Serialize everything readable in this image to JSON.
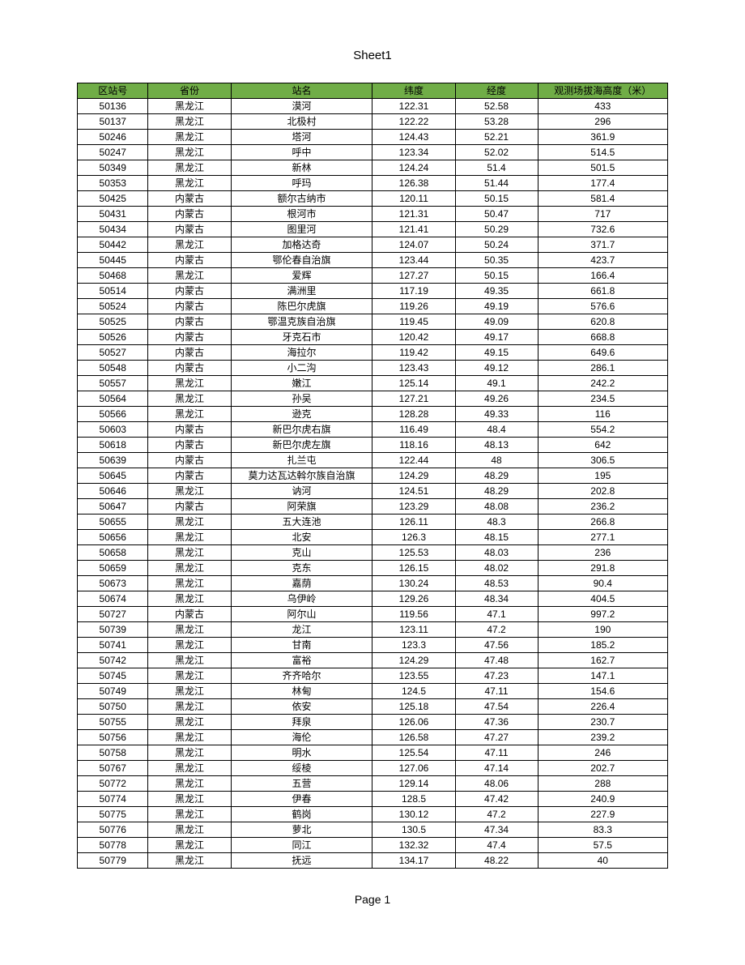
{
  "sheet_title": "Sheet1",
  "page_label": "Page 1",
  "table": {
    "columns": [
      "区站号",
      "省份",
      "站名",
      "纬度",
      "经度",
      "观测场拔海高度（米）"
    ],
    "header_bg": "#70ad47",
    "border_color": "#000000",
    "rows": [
      [
        "50136",
        "黑龙江",
        "漠河",
        "122.31",
        "52.58",
        "433"
      ],
      [
        "50137",
        "黑龙江",
        "北极村",
        "122.22",
        "53.28",
        "296"
      ],
      [
        "50246",
        "黑龙江",
        "塔河",
        "124.43",
        "52.21",
        "361.9"
      ],
      [
        "50247",
        "黑龙江",
        "呼中",
        "123.34",
        "52.02",
        "514.5"
      ],
      [
        "50349",
        "黑龙江",
        "新林",
        "124.24",
        "51.4",
        "501.5"
      ],
      [
        "50353",
        "黑龙江",
        "呼玛",
        "126.38",
        "51.44",
        "177.4"
      ],
      [
        "50425",
        "内蒙古",
        "额尔古纳市",
        "120.11",
        "50.15",
        "581.4"
      ],
      [
        "50431",
        "内蒙古",
        "根河市",
        "121.31",
        "50.47",
        "717"
      ],
      [
        "50434",
        "内蒙古",
        "图里河",
        "121.41",
        "50.29",
        "732.6"
      ],
      [
        "50442",
        "黑龙江",
        "加格达奇",
        "124.07",
        "50.24",
        "371.7"
      ],
      [
        "50445",
        "内蒙古",
        "鄂伦春自治旗",
        "123.44",
        "50.35",
        "423.7"
      ],
      [
        "50468",
        "黑龙江",
        "爱辉",
        "127.27",
        "50.15",
        "166.4"
      ],
      [
        "50514",
        "内蒙古",
        "满洲里",
        "117.19",
        "49.35",
        "661.8"
      ],
      [
        "50524",
        "内蒙古",
        "陈巴尔虎旗",
        "119.26",
        "49.19",
        "576.6"
      ],
      [
        "50525",
        "内蒙古",
        "鄂温克族自治旗",
        "119.45",
        "49.09",
        "620.8"
      ],
      [
        "50526",
        "内蒙古",
        "牙克石市",
        "120.42",
        "49.17",
        "668.8"
      ],
      [
        "50527",
        "内蒙古",
        "海拉尔",
        "119.42",
        "49.15",
        "649.6"
      ],
      [
        "50548",
        "内蒙古",
        "小二沟",
        "123.43",
        "49.12",
        "286.1"
      ],
      [
        "50557",
        "黑龙江",
        "嫩江",
        "125.14",
        "49.1",
        "242.2"
      ],
      [
        "50564",
        "黑龙江",
        "孙吴",
        "127.21",
        "49.26",
        "234.5"
      ],
      [
        "50566",
        "黑龙江",
        "逊克",
        "128.28",
        "49.33",
        "116"
      ],
      [
        "50603",
        "内蒙古",
        "新巴尔虎右旗",
        "116.49",
        "48.4",
        "554.2"
      ],
      [
        "50618",
        "内蒙古",
        "新巴尔虎左旗",
        "118.16",
        "48.13",
        "642"
      ],
      [
        "50639",
        "内蒙古",
        "扎兰屯",
        "122.44",
        "48",
        "306.5"
      ],
      [
        "50645",
        "内蒙古",
        "莫力达瓦达斡尔族自治旗",
        "124.29",
        "48.29",
        "195"
      ],
      [
        "50646",
        "黑龙江",
        "讷河",
        "124.51",
        "48.29",
        "202.8"
      ],
      [
        "50647",
        "内蒙古",
        "阿荣旗",
        "123.29",
        "48.08",
        "236.2"
      ],
      [
        "50655",
        "黑龙江",
        "五大连池",
        "126.11",
        "48.3",
        "266.8"
      ],
      [
        "50656",
        "黑龙江",
        "北安",
        "126.3",
        "48.15",
        "277.1"
      ],
      [
        "50658",
        "黑龙江",
        "克山",
        "125.53",
        "48.03",
        "236"
      ],
      [
        "50659",
        "黑龙江",
        "克东",
        "126.15",
        "48.02",
        "291.8"
      ],
      [
        "50673",
        "黑龙江",
        "嘉荫",
        "130.24",
        "48.53",
        "90.4"
      ],
      [
        "50674",
        "黑龙江",
        "乌伊岭",
        "129.26",
        "48.34",
        "404.5"
      ],
      [
        "50727",
        "内蒙古",
        "阿尔山",
        "119.56",
        "47.1",
        "997.2"
      ],
      [
        "50739",
        "黑龙江",
        "龙江",
        "123.11",
        "47.2",
        "190"
      ],
      [
        "50741",
        "黑龙江",
        "甘南",
        "123.3",
        "47.56",
        "185.2"
      ],
      [
        "50742",
        "黑龙江",
        "富裕",
        "124.29",
        "47.48",
        "162.7"
      ],
      [
        "50745",
        "黑龙江",
        "齐齐哈尔",
        "123.55",
        "47.23",
        "147.1"
      ],
      [
        "50749",
        "黑龙江",
        "林甸",
        "124.5",
        "47.11",
        "154.6"
      ],
      [
        "50750",
        "黑龙江",
        "依安",
        "125.18",
        "47.54",
        "226.4"
      ],
      [
        "50755",
        "黑龙江",
        "拜泉",
        "126.06",
        "47.36",
        "230.7"
      ],
      [
        "50756",
        "黑龙江",
        "海伦",
        "126.58",
        "47.27",
        "239.2"
      ],
      [
        "50758",
        "黑龙江",
        "明水",
        "125.54",
        "47.11",
        "246"
      ],
      [
        "50767",
        "黑龙江",
        "绥棱",
        "127.06",
        "47.14",
        "202.7"
      ],
      [
        "50772",
        "黑龙江",
        "五营",
        "129.14",
        "48.06",
        "288"
      ],
      [
        "50774",
        "黑龙江",
        "伊春",
        "128.5",
        "47.42",
        "240.9"
      ],
      [
        "50775",
        "黑龙江",
        "鹤岗",
        "130.12",
        "47.2",
        "227.9"
      ],
      [
        "50776",
        "黑龙江",
        "萝北",
        "130.5",
        "47.34",
        "83.3"
      ],
      [
        "50778",
        "黑龙江",
        "同江",
        "132.32",
        "47.4",
        "57.5"
      ],
      [
        "50779",
        "黑龙江",
        "抚远",
        "134.17",
        "48.22",
        "40"
      ]
    ]
  }
}
